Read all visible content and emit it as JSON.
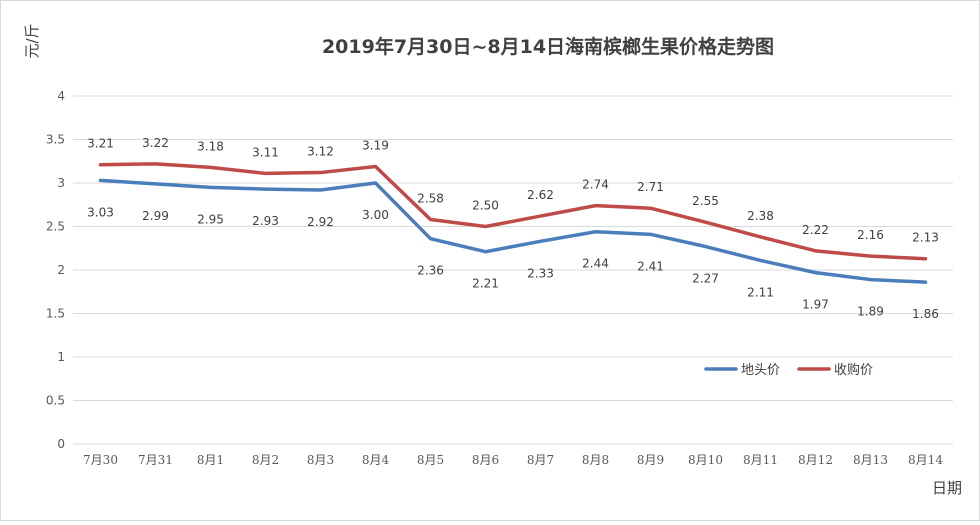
{
  "chart_data": {
    "type": "line",
    "title": "2019年7月30日~8月14日海南槟榔生果价格走势图",
    "xlabel": "日期",
    "ylabel": "元/斤",
    "ylim": [
      0,
      4
    ],
    "yticks": [
      "0",
      "0.5",
      "1",
      "1.5",
      "2",
      "2.5",
      "3",
      "3.5",
      "4"
    ],
    "grid": true,
    "legend_position": "right",
    "categories": [
      "7月30",
      "7月31",
      "8月1",
      "8月2",
      "8月3",
      "8月4",
      "8月5",
      "8月6",
      "8月7",
      "8月8",
      "8月9",
      "8月10",
      "8月11",
      "8月12",
      "8月13",
      "8月14"
    ],
    "series": [
      {
        "name": "地头价",
        "color": "#4a7ebb",
        "values": [
          3.03,
          2.99,
          2.95,
          2.93,
          2.92,
          3.0,
          2.36,
          2.21,
          2.33,
          2.44,
          2.41,
          2.27,
          2.11,
          1.97,
          1.89,
          1.86
        ],
        "labels": [
          "3.03",
          "2.99",
          "2.95",
          "2.93",
          "2.92",
          "3.00",
          "2.36",
          "2.21",
          "2.33",
          "2.44",
          "2.41",
          "2.27",
          "2.11",
          "1.97",
          "1.89",
          "1.86"
        ]
      },
      {
        "name": "收购价",
        "color": "#be4b48",
        "values": [
          3.21,
          3.22,
          3.18,
          3.11,
          3.12,
          3.19,
          2.58,
          2.5,
          2.62,
          2.74,
          2.71,
          2.55,
          2.38,
          2.22,
          2.16,
          2.13
        ],
        "labels": [
          "3.21",
          "3.22",
          "3.18",
          "3.11",
          "3.12",
          "3.19",
          "2.58",
          "2.50",
          "2.62",
          "2.74",
          "2.71",
          "2.55",
          "2.38",
          "2.22",
          "2.16",
          "2.13"
        ]
      }
    ]
  }
}
